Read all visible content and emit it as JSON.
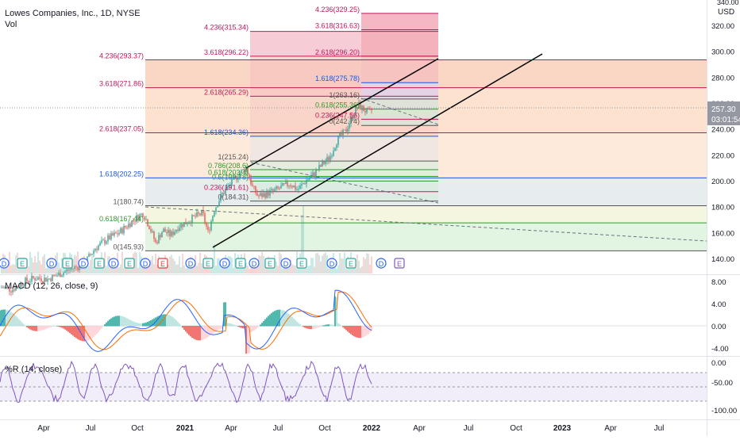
{
  "header": {
    "symbol_title": "Lowes Companies, Inc., 1D, NYSE",
    "vol_label": "Vol",
    "currency": "USD"
  },
  "price_axis": {
    "ticks": [
      "320.00",
      "300.00",
      "280.00",
      "260.00",
      "240.00",
      "220.00",
      "200.00",
      "180.00",
      "160.00",
      "140.00"
    ],
    "top_partial": "340.00",
    "last_price": "257.30",
    "countdown": "03:01:54",
    "last_price_color": "#9598a1"
  },
  "macd": {
    "label": "MACD (12, 26, close, 9)",
    "ticks": [
      "8.00",
      "4.00",
      "0.00",
      "-4.00"
    ]
  },
  "williams": {
    "label": "%R (14, close)",
    "ticks": [
      "0.00",
      "-50.00",
      "-100.00"
    ]
  },
  "time_axis": [
    "Apr",
    "Jul",
    "Oct",
    "2021",
    "Apr",
    "Jul",
    "Oct",
    "2022",
    "Apr",
    "Jul",
    "Oct",
    "2023",
    "Apr",
    "Jul"
  ],
  "fib_left": [
    {
      "text": "4.236(293.37)",
      "color": "#c2185b"
    },
    {
      "text": "3.618(271.86)",
      "color": "#c2185b"
    },
    {
      "text": "2.618(237.05)",
      "color": "#c2185b"
    },
    {
      "text": "1.618(202.25)",
      "color": "#1e53e5"
    },
    {
      "text": "1(180.74)",
      "color": "#555555"
    },
    {
      "text": "0.618(167.44)",
      "color": "#2e9a2e"
    },
    {
      "text": "0(145.93)",
      "color": "#555555"
    }
  ],
  "fib_mid": [
    {
      "text": "4.236(315.34)",
      "color": "#c2185b"
    },
    {
      "text": "3.618(296.22)",
      "color": "#c2185b"
    },
    {
      "text": "2.618(265.29)",
      "color": "#c2185b"
    },
    {
      "text": "1.618(234.36)",
      "color": "#1e53e5"
    },
    {
      "text": "1(215.24)",
      "color": "#555555"
    },
    {
      "text": "0.786(208.6)",
      "color": "#2e9a2e"
    },
    {
      "text": "0.618(203.4)",
      "color": "#2e9a2e"
    },
    {
      "text": "0.5(199.78)",
      "color": "#2e9a2e"
    },
    {
      "text": "0.236(191.61)",
      "color": "#c2185b"
    },
    {
      "text": "0(184.31)",
      "color": "#555555"
    }
  ],
  "fib_right": [
    {
      "text": "4.236(329.25)",
      "color": "#c2185b"
    },
    {
      "text": "3.618(316.63)",
      "color": "#c2185b"
    },
    {
      "text": "2.618(296.20)",
      "color": "#c2185b"
    },
    {
      "text": "1.618(275.78)",
      "color": "#1e53e5"
    },
    {
      "text": "1(263.16)",
      "color": "#555555"
    },
    {
      "text": "0.618(255.36)",
      "color": "#2e9a2e"
    },
    {
      "text": "0.236(247.56)",
      "color": "#c2185b"
    },
    {
      "text": "0(242.74)",
      "color": "#555555"
    }
  ],
  "event_markers": [
    "D",
    "E",
    "D",
    "E",
    "D",
    "E",
    "D",
    "E",
    "D",
    "E",
    "D",
    "E",
    "D",
    "E",
    "D",
    "E",
    "D",
    "E",
    "D",
    "E",
    "D",
    "E"
  ],
  "colors": {
    "up": "#26a69a",
    "down": "#ef5350",
    "macd_line": "#2962ff",
    "signal_line": "#ff6d00",
    "wr_line": "#7e57c2"
  }
}
